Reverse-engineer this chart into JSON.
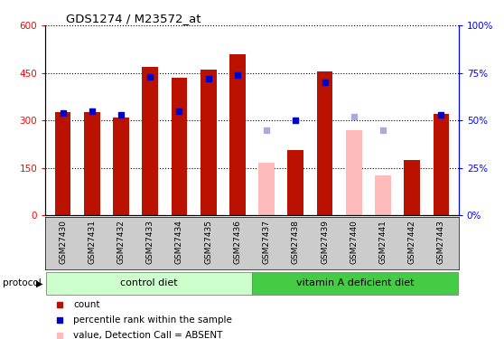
{
  "title": "GDS1274 / M23572_at",
  "samples": [
    "GSM27430",
    "GSM27431",
    "GSM27432",
    "GSM27433",
    "GSM27434",
    "GSM27435",
    "GSM27436",
    "GSM27437",
    "GSM27438",
    "GSM27439",
    "GSM27440",
    "GSM27441",
    "GSM27442",
    "GSM27443"
  ],
  "counts": [
    325,
    325,
    310,
    470,
    435,
    460,
    510,
    null,
    205,
    455,
    null,
    null,
    175,
    320
  ],
  "ranks": [
    54,
    55,
    53,
    73,
    55,
    72,
    74,
    null,
    50,
    70,
    null,
    null,
    null,
    53
  ],
  "absent_counts": [
    null,
    null,
    null,
    null,
    null,
    null,
    null,
    165,
    null,
    null,
    270,
    125,
    null,
    null
  ],
  "absent_ranks": [
    null,
    null,
    null,
    null,
    null,
    null,
    null,
    45,
    null,
    null,
    52,
    45,
    null,
    null
  ],
  "is_absent": [
    false,
    false,
    false,
    false,
    false,
    false,
    false,
    true,
    false,
    false,
    true,
    true,
    false,
    false
  ],
  "control_count": 7,
  "treatment_count": 7,
  "control_label": "control diet",
  "treatment_label": "vitamin A deficient diet",
  "protocol_label": "protocol",
  "ylim_left": [
    0,
    600
  ],
  "ylim_right": [
    0,
    100
  ],
  "yticks_left": [
    0,
    150,
    300,
    450,
    600
  ],
  "yticks_right": [
    0,
    25,
    50,
    75,
    100
  ],
  "bar_color_present": "#bb1100",
  "bar_color_absent": "#ffbbbb",
  "rank_color_present": "#0000cc",
  "rank_color_absent": "#aaaadd",
  "control_bg": "#ccffcc",
  "treatment_bg": "#44cc44",
  "xlabel_area_bg": "#cccccc",
  "figsize": [
    5.58,
    3.75
  ],
  "dpi": 100
}
